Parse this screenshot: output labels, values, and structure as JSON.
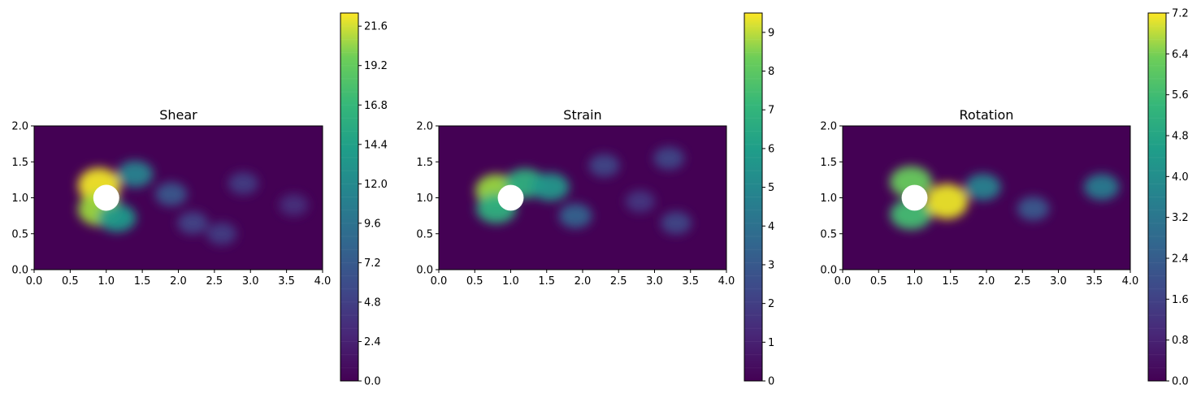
{
  "chart_data": [
    {
      "type": "heatmap",
      "title": "Shear",
      "xlim": [
        0,
        4
      ],
      "ylim": [
        0,
        2
      ],
      "xticks": [
        "0.0",
        "0.5",
        "1.0",
        "1.5",
        "2.0",
        "2.5",
        "3.0",
        "3.5",
        "4.0"
      ],
      "yticks": [
        "0.0",
        "0.5",
        "1.0",
        "1.5",
        "2.0"
      ],
      "colorbar": {
        "range": [
          0,
          22.4
        ],
        "ticks": [
          "0.0",
          "2.4",
          "4.8",
          "7.2",
          "9.6",
          "12.0",
          "14.4",
          "16.8",
          "19.2",
          "21.6"
        ],
        "tick_values": [
          0,
          2.4,
          4.8,
          7.2,
          9.6,
          12.0,
          14.4,
          16.8,
          19.2,
          21.6
        ]
      },
      "colormap": "viridis",
      "obstacle": {
        "cx": 1.0,
        "cy": 1.0,
        "r": 0.18
      },
      "features": [
        {
          "x": 1.0,
          "y": 1.0,
          "value": 4.0
        },
        {
          "x": 0.9,
          "y": 1.17,
          "value": 22.0
        },
        {
          "x": 0.9,
          "y": 0.84,
          "value": 19.0
        },
        {
          "x": 1.15,
          "y": 0.72,
          "value": 12.0
        },
        {
          "x": 1.4,
          "y": 1.33,
          "value": 10.0
        },
        {
          "x": 1.9,
          "y": 1.05,
          "value": 6.0
        },
        {
          "x": 2.2,
          "y": 0.65,
          "value": 4.5
        },
        {
          "x": 2.6,
          "y": 0.5,
          "value": 4.0
        },
        {
          "x": 2.9,
          "y": 1.2,
          "value": 4.0
        },
        {
          "x": 3.6,
          "y": 0.9,
          "value": 3.0
        }
      ]
    },
    {
      "type": "heatmap",
      "title": "Strain",
      "xlim": [
        0,
        4
      ],
      "ylim": [
        0,
        2
      ],
      "xticks": [
        "0.0",
        "0.5",
        "1.0",
        "1.5",
        "2.0",
        "2.5",
        "3.0",
        "3.5",
        "4.0"
      ],
      "yticks": [
        "0.0",
        "0.5",
        "1.0",
        "1.5",
        "2.0"
      ],
      "colorbar": {
        "range": [
          0,
          9.5
        ],
        "ticks": [
          "0",
          "1",
          "2",
          "3",
          "4",
          "5",
          "6",
          "7",
          "8",
          "9"
        ],
        "tick_values": [
          0,
          1,
          2,
          3,
          4,
          5,
          6,
          7,
          8,
          9
        ]
      },
      "colormap": "viridis",
      "obstacle": {
        "cx": 1.0,
        "cy": 1.0,
        "r": 0.18
      },
      "features": [
        {
          "x": 0.8,
          "y": 1.1,
          "value": 8.0
        },
        {
          "x": 0.8,
          "y": 0.85,
          "value": 6.0
        },
        {
          "x": 1.2,
          "y": 1.2,
          "value": 6.0
        },
        {
          "x": 1.55,
          "y": 1.15,
          "value": 5.0
        },
        {
          "x": 1.9,
          "y": 0.75,
          "value": 3.0
        },
        {
          "x": 2.3,
          "y": 1.45,
          "value": 2.0
        },
        {
          "x": 3.2,
          "y": 1.55,
          "value": 2.0
        },
        {
          "x": 3.3,
          "y": 0.65,
          "value": 2.0
        },
        {
          "x": 2.8,
          "y": 0.95,
          "value": 1.5
        }
      ]
    },
    {
      "type": "heatmap",
      "title": "Rotation",
      "xlim": [
        0,
        4
      ],
      "ylim": [
        0,
        2
      ],
      "xticks": [
        "0.0",
        "0.5",
        "1.0",
        "1.5",
        "2.0",
        "2.5",
        "3.0",
        "3.5",
        "4.0"
      ],
      "yticks": [
        "0.0",
        "0.5",
        "1.0",
        "1.5",
        "2.0"
      ],
      "colorbar": {
        "range": [
          0,
          7.2
        ],
        "ticks": [
          "0.0",
          "0.8",
          "1.6",
          "2.4",
          "3.2",
          "4.0",
          "4.8",
          "5.6",
          "6.4",
          "7.2"
        ],
        "tick_values": [
          0,
          0.8,
          1.6,
          2.4,
          3.2,
          4.0,
          4.8,
          5.6,
          6.4,
          7.2
        ]
      },
      "colormap": "viridis",
      "obstacle": {
        "cx": 1.0,
        "cy": 1.0,
        "r": 0.18
      },
      "features": [
        {
          "x": 0.95,
          "y": 1.22,
          "value": 5.5
        },
        {
          "x": 0.95,
          "y": 0.77,
          "value": 5.0
        },
        {
          "x": 1.45,
          "y": 0.95,
          "value": 7.0
        },
        {
          "x": 1.95,
          "y": 1.15,
          "value": 3.2
        },
        {
          "x": 2.65,
          "y": 0.85,
          "value": 2.0
        },
        {
          "x": 3.6,
          "y": 1.15,
          "value": 3.0
        }
      ]
    }
  ]
}
